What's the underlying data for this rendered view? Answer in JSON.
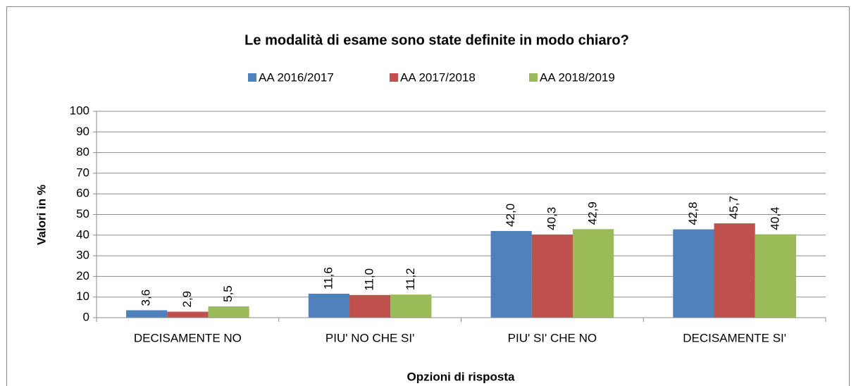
{
  "chart_data": {
    "type": "bar",
    "title": "Le modalità di esame sono state definite in modo chiaro?",
    "x_label": "Opzioni di risposta",
    "y_label": "Valori in %",
    "categories": [
      "DECISAMENTE NO",
      "PIU' NO CHE SI'",
      "PIU' SI' CHE NO",
      "DECISAMENTE SI'"
    ],
    "series": [
      {
        "name": "AA 2016/2017",
        "color": "#4f81bd",
        "values": [
          3.6,
          11.6,
          42.0,
          42.8
        ],
        "value_labels": [
          "3,6",
          "11,6",
          "42,0",
          "42,8"
        ]
      },
      {
        "name": "AA 2017/2018",
        "color": "#c0504d",
        "values": [
          2.9,
          11.0,
          40.3,
          45.7
        ],
        "value_labels": [
          "2,9",
          "11,0",
          "40,3",
          "45,7"
        ]
      },
      {
        "name": "AA 2018/2019",
        "color": "#9bbb59",
        "values": [
          5.5,
          11.2,
          42.9,
          40.4
        ],
        "value_labels": [
          "5,5",
          "11,2",
          "42,9",
          "40,4"
        ]
      }
    ],
    "ylim": [
      0,
      100
    ],
    "yticks": [
      0,
      10,
      20,
      30,
      40,
      50,
      60,
      70,
      80,
      90,
      100
    ],
    "grid": true,
    "legend": "top"
  }
}
